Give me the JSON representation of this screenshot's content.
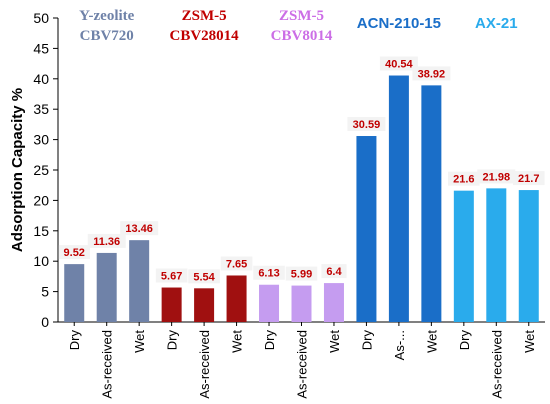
{
  "chart_data": {
    "type": "bar",
    "ylabel": "Adsorption Capacity %",
    "xlabel": "",
    "ylim": [
      0,
      50
    ],
    "yticks": [
      "0",
      "5",
      "10",
      "15",
      "20",
      "25",
      "30",
      "35",
      "40",
      "45",
      "50"
    ],
    "grid": false,
    "categories": [
      "Dry",
      "As-received",
      "Wet",
      "Dry",
      "As-received",
      "Wet",
      "Dry",
      "As-received",
      "Wet",
      "Dry",
      "As-...",
      "Wet",
      "Dry",
      "As-received",
      "Wet"
    ],
    "values": [
      9.52,
      11.36,
      13.46,
      5.67,
      5.54,
      7.65,
      6.13,
      5.99,
      6.4,
      30.59,
      40.54,
      38.92,
      21.6,
      21.98,
      21.7
    ],
    "value_labels": [
      "9.52",
      "11.36",
      "13.46",
      "5.67",
      "5.54",
      "7.65",
      "6.13",
      "5.99",
      "6.4",
      "30.59",
      "40.54",
      "38.92",
      "21.6",
      "21.98",
      "21.7"
    ],
    "groups": [
      {
        "line1": "Y-zeolite",
        "line2": "CBV720",
        "color": "#6f82a8",
        "label_color": "#6f82a8",
        "start": 0,
        "end": 2
      },
      {
        "line1": "ZSM-5",
        "line2": "CBV28014",
        "color": "#a01010",
        "label_color": "#c00000",
        "start": 3,
        "end": 5
      },
      {
        "line1": "ZSM-5",
        "line2": "CBV8014",
        "color": "#c59cf0",
        "label_color": "#cc6ee6",
        "start": 6,
        "end": 8
      },
      {
        "line1": "ACN-210-15",
        "line2": "",
        "color": "#1a6ec8",
        "label_color": "#1a6ec8",
        "start": 9,
        "end": 11
      },
      {
        "line1": "AX-21",
        "line2": "",
        "color": "#2aabec",
        "label_color": "#2aabec",
        "start": 12,
        "end": 14
      }
    ]
  }
}
